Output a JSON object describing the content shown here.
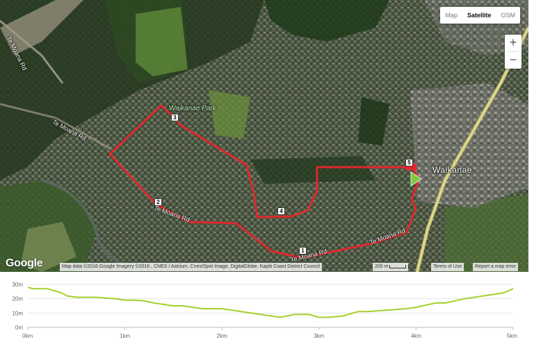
{
  "map": {
    "maptype": [
      {
        "label": "Map",
        "active": false
      },
      {
        "label": "Satellite",
        "active": true
      },
      {
        "label": "OSM",
        "active": false
      }
    ],
    "zoom_in": "+",
    "zoom_out": "−",
    "logo": "Google",
    "attribution": "Map data ©2016 Google Imagery ©2016 , CNES / Astrium, Cnes/Spot Image, DigitalGlobe, Kapiti Coast District Council",
    "scale": "200 m",
    "terms": "Terms of Use",
    "report": "Report a map error",
    "labels": {
      "road_te_moana_1": "Te Moana Rd",
      "road_te_moana_2": "Te Moana Rd",
      "road_te_moana_3": "Te Moana Rd",
      "road_te_moana_4": "Te Moana Rd",
      "road_te_moana_5": "Te Moana Rd",
      "park": "Waikanae Park",
      "town": "Waikanae"
    },
    "markers": [
      "1",
      "2",
      "3",
      "4",
      "5"
    ],
    "colors": {
      "route": "#e8262b",
      "start": "#7cc83b"
    }
  },
  "elevation": {
    "y_ticks": [
      "30m",
      "20m",
      "10m",
      "0m"
    ],
    "x_ticks": [
      "0km",
      "1km",
      "2km",
      "3km",
      "4km",
      "5km"
    ],
    "line_color": "#a6cf2a"
  },
  "chart_data": {
    "type": "line",
    "title": "",
    "xlabel": "",
    "ylabel": "",
    "xlim": [
      0,
      5
    ],
    "ylim": [
      0,
      30
    ],
    "x_unit": "km",
    "y_unit": "m",
    "x": [
      0,
      0.05,
      0.2,
      0.35,
      0.4,
      0.5,
      0.7,
      0.9,
      1.0,
      1.1,
      1.2,
      1.3,
      1.5,
      1.6,
      1.8,
      2.0,
      2.2,
      2.4,
      2.6,
      2.75,
      2.9,
      3.0,
      3.1,
      3.25,
      3.4,
      3.5,
      3.7,
      3.9,
      4.0,
      4.2,
      4.3,
      4.5,
      4.7,
      4.9,
      5.0
    ],
    "values": [
      28,
      27,
      27,
      24,
      22,
      21,
      21,
      20,
      19,
      19,
      18.5,
      17,
      15,
      15,
      13,
      13,
      11,
      9,
      7,
      9,
      9,
      7,
      7,
      8,
      11,
      11,
      12,
      13,
      14,
      17,
      17,
      20,
      22,
      24,
      27
    ]
  }
}
